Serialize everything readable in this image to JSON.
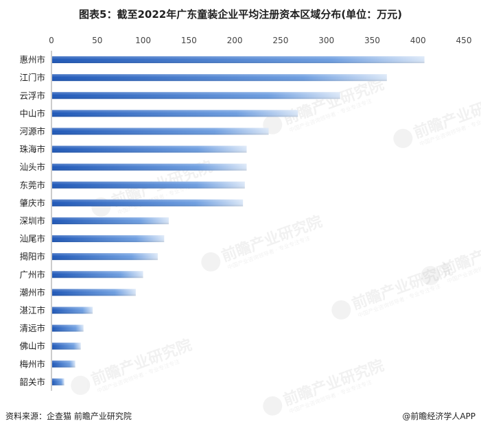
{
  "title": "图表5：截至2022年广东童装企业平均注册资本区域分布(单位：万元)",
  "source": "资料来源：企查猫 前瞻产业研究院",
  "credit": "@前瞻经济学人APP",
  "watermark": {
    "cn": "前瞻产业研究院",
    "sub": "中国产业咨询领导者 · 专业专注专注"
  },
  "chart_data": {
    "type": "bar",
    "orientation": "horizontal",
    "title": "图表5：截至2022年广东童装企业平均注册资本区域分布(单位：万元)",
    "xlabel": "",
    "ylabel": "",
    "xlim": [
      0,
      450
    ],
    "xticks": [
      0,
      50,
      100,
      150,
      200,
      250,
      300,
      350,
      400,
      450
    ],
    "axis_position": "top",
    "grid": false,
    "categories": [
      "惠州市",
      "江门市",
      "云浮市",
      "中山市",
      "河源市",
      "珠海市",
      "汕头市",
      "东莞市",
      "肇庆市",
      "深圳市",
      "汕尾市",
      "揭阳市",
      "广州市",
      "潮州市",
      "湛江市",
      "清远市",
      "佛山市",
      "梅州市",
      "韶关市"
    ],
    "values": [
      407,
      366,
      315,
      269,
      237,
      213,
      213,
      211,
      209,
      128,
      123,
      116,
      100,
      92,
      45,
      35,
      32,
      26,
      14
    ],
    "bar_color": "#2f6fc8"
  }
}
